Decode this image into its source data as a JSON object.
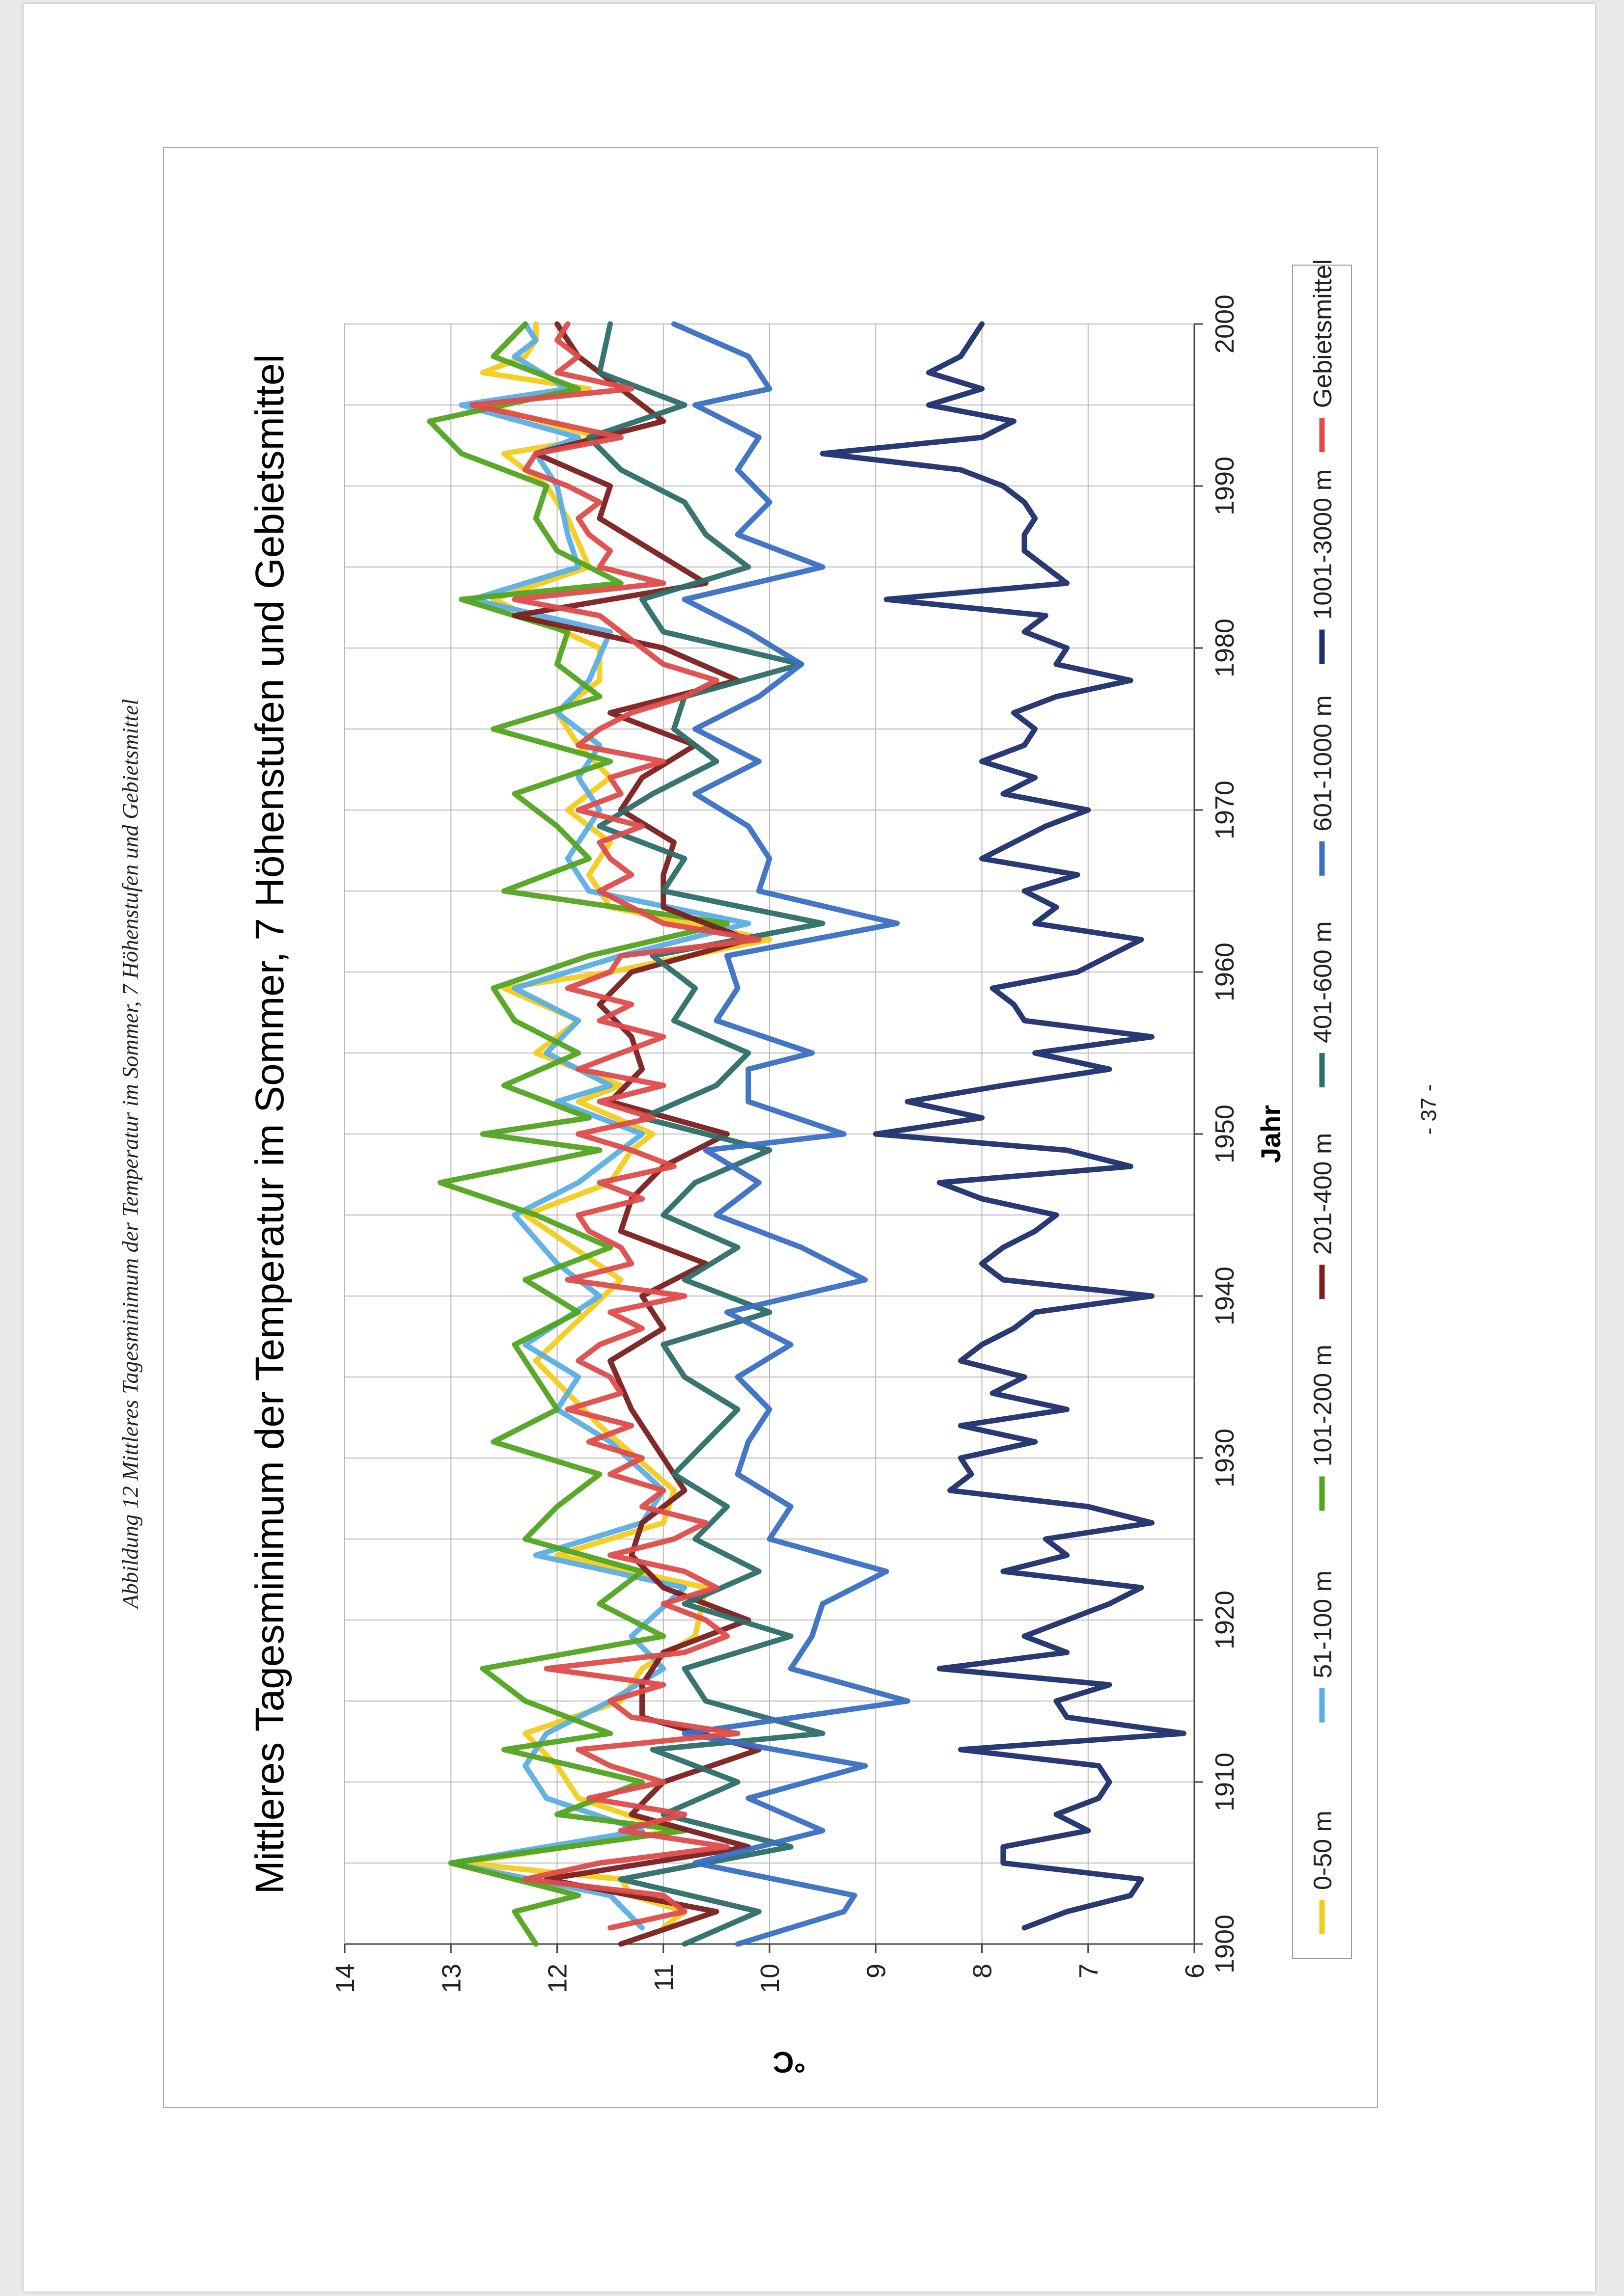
{
  "caption": "Abbildung 12 Mittleres Tagesminimum der Temperatur im Sommer, 7 Höhenstufen und Gebietsmittel",
  "page_number": "- 37 -",
  "chart_data": {
    "type": "line",
    "title": "Mittleres Tagesminimum der Temperatur im Sommer, 7 Höhenstufen und Gebietsmittel",
    "xlabel": "Jahr",
    "ylabel": "°C",
    "xlim": [
      1900,
      2000
    ],
    "ylim": [
      6,
      14
    ],
    "x_ticks": [
      "1900",
      "1910",
      "1920",
      "1930",
      "1940",
      "1950",
      "1960",
      "1970",
      "1980",
      "1990",
      "2000"
    ],
    "y_ticks": [
      "6",
      "7",
      "8",
      "9",
      "10",
      "11",
      "12",
      "13",
      "14"
    ],
    "grid": true,
    "legend_position": "bottom",
    "series": [
      {
        "name": "0-50 m",
        "color": "#f2cc1b",
        "x": [
          1901,
          1902,
          1903,
          1904,
          1905,
          1907,
          1909,
          1911,
          1913,
          1915,
          1917,
          1919,
          1922,
          1924,
          1926,
          1928,
          1932,
          1936,
          1941,
          1945,
          1947,
          1949,
          1950,
          1952,
          1953,
          1955,
          1957,
          1959,
          1960,
          1962,
          1964,
          1966,
          1968,
          1970,
          1972,
          1974,
          1976,
          1978,
          1980,
          1983,
          1985,
          1988,
          1990,
          1992,
          1993,
          1995,
          1996,
          1997,
          1998,
          1999,
          2000
        ],
        "y": [
          11.0,
          10.8,
          11.3,
          11.4,
          12.9,
          10.9,
          11.8,
          12.0,
          12.3,
          11.4,
          11.2,
          10.7,
          10.6,
          12.0,
          11.0,
          10.9,
          11.6,
          12.2,
          11.4,
          12.3,
          11.5,
          11.3,
          11.1,
          11.8,
          11.4,
          12.2,
          11.8,
          12.5,
          11.5,
          10.0,
          11.5,
          11.7,
          11.5,
          11.9,
          11.5,
          11.8,
          12.0,
          11.6,
          11.6,
          12.6,
          11.7,
          11.9,
          12.1,
          12.5,
          11.6,
          12.7,
          11.7,
          12.7,
          12.3,
          12.2,
          12.2
        ]
      },
      {
        "name": "51-100 m",
        "color": "#5aaee4",
        "x": [
          1901,
          1903,
          1905,
          1907,
          1909,
          1911,
          1913,
          1915,
          1917,
          1919,
          1922,
          1924,
          1926,
          1928,
          1931,
          1933,
          1935,
          1937,
          1940,
          1942,
          1945,
          1947,
          1950,
          1952,
          1953,
          1955,
          1957,
          1959,
          1961,
          1963,
          1965,
          1967,
          1970,
          1972,
          1974,
          1976,
          1978,
          1981,
          1983,
          1985,
          1987,
          1990,
          1992,
          1993,
          1995,
          1996,
          1998,
          1999,
          2000
        ],
        "y": [
          11.2,
          11.5,
          13.0,
          11.2,
          12.1,
          12.3,
          12.1,
          11.5,
          11.0,
          11.3,
          10.8,
          12.2,
          11.2,
          11.0,
          11.5,
          12.0,
          11.8,
          12.3,
          11.6,
          12.0,
          12.4,
          11.8,
          11.2,
          12.0,
          11.5,
          12.1,
          11.8,
          12.4,
          11.4,
          10.2,
          11.7,
          11.9,
          11.6,
          11.8,
          11.6,
          12.0,
          11.7,
          11.5,
          12.8,
          11.8,
          11.9,
          12.0,
          12.2,
          11.8,
          12.9,
          11.9,
          12.4,
          12.2,
          12.3
        ]
      },
      {
        "name": "101-200 m",
        "color": "#52a41f",
        "x": [
          1900,
          1902,
          1903,
          1905,
          1907,
          1908,
          1910,
          1912,
          1913,
          1915,
          1917,
          1919,
          1921,
          1923,
          1925,
          1927,
          1929,
          1931,
          1933,
          1935,
          1937,
          1939,
          1941,
          1943,
          1945,
          1947,
          1949,
          1950,
          1951,
          1953,
          1955,
          1957,
          1959,
          1961,
          1963,
          1965,
          1967,
          1969,
          1971,
          1973,
          1975,
          1977,
          1979,
          1981,
          1983,
          1984,
          1986,
          1988,
          1990,
          1992,
          1994,
          1996,
          1998,
          2000
        ],
        "y": [
          12.2,
          12.4,
          11.8,
          13.0,
          10.8,
          12.0,
          11.2,
          12.5,
          11.5,
          12.3,
          12.7,
          11.0,
          11.6,
          11.2,
          12.3,
          12.0,
          11.6,
          12.6,
          12.0,
          12.2,
          12.4,
          11.8,
          12.3,
          11.5,
          12.2,
          13.1,
          11.6,
          12.7,
          11.7,
          12.5,
          11.8,
          12.4,
          12.6,
          11.7,
          10.4,
          12.5,
          11.7,
          12.0,
          12.4,
          11.5,
          12.6,
          11.6,
          12.0,
          11.9,
          12.9,
          11.4,
          12.0,
          12.2,
          12.1,
          12.9,
          13.2,
          11.8,
          12.6,
          12.3
        ]
      },
      {
        "name": "201-400 m",
        "color": "#7b1f1f",
        "x": [
          1900,
          1902,
          1904,
          1906,
          1908,
          1910,
          1912,
          1914,
          1916,
          1918,
          1920,
          1922,
          1924,
          1926,
          1928,
          1930,
          1933,
          1936,
          1938,
          1940,
          1942,
          1944,
          1946,
          1948,
          1950,
          1952,
          1954,
          1956,
          1958,
          1960,
          1962,
          1964,
          1966,
          1968,
          1970,
          1972,
          1974,
          1976,
          1978,
          1980,
          1982,
          1984,
          1986,
          1988,
          1990,
          1992,
          1994,
          1996,
          1998,
          2000
        ],
        "y": [
          11.4,
          10.5,
          12.1,
          10.2,
          11.3,
          11.0,
          10.1,
          11.2,
          11.2,
          11.0,
          10.2,
          11.0,
          11.3,
          11.2,
          10.8,
          11.0,
          11.3,
          11.5,
          11.0,
          11.2,
          10.6,
          11.4,
          11.3,
          11.0,
          10.4,
          11.5,
          11.2,
          11.3,
          11.6,
          11.3,
          10.2,
          11.0,
          11.0,
          10.9,
          11.4,
          11.2,
          10.7,
          11.5,
          10.3,
          11.0,
          12.4,
          10.6,
          11.1,
          11.6,
          11.5,
          12.2,
          11.0,
          11.4,
          11.8,
          12.0
        ]
      },
      {
        "name": "401-600 m",
        "color": "#2e6e68",
        "x": [
          1900,
          1902,
          1904,
          1906,
          1908,
          1910,
          1912,
          1913,
          1915,
          1917,
          1919,
          1921,
          1923,
          1925,
          1927,
          1929,
          1931,
          1933,
          1935,
          1937,
          1939,
          1941,
          1943,
          1945,
          1947,
          1949,
          1951,
          1953,
          1955,
          1957,
          1959,
          1961,
          1963,
          1965,
          1967,
          1969,
          1971,
          1973,
          1975,
          1977,
          1979,
          1981,
          1983,
          1985,
          1987,
          1989,
          1991,
          1993,
          1995,
          1997,
          2000
        ],
        "y": [
          10.8,
          10.1,
          11.4,
          9.8,
          11.0,
          10.3,
          11.1,
          9.5,
          10.6,
          10.8,
          9.8,
          10.8,
          10.1,
          10.7,
          10.4,
          10.9,
          10.6,
          10.3,
          10.8,
          11.0,
          10.0,
          10.8,
          10.3,
          11.0,
          10.7,
          10.0,
          11.2,
          10.5,
          10.2,
          10.9,
          10.7,
          11.1,
          9.5,
          11.0,
          10.8,
          11.6,
          11.1,
          10.5,
          10.9,
          10.8,
          9.7,
          11.0,
          11.2,
          10.2,
          10.6,
          10.8,
          11.4,
          11.7,
          10.8,
          11.6,
          11.5
        ]
      },
      {
        "name": "601-1000 m",
        "color": "#3a6fc5",
        "x": [
          1900,
          1902,
          1903,
          1905,
          1907,
          1909,
          1911,
          1913,
          1915,
          1917,
          1919,
          1921,
          1923,
          1925,
          1927,
          1929,
          1931,
          1933,
          1935,
          1937,
          1939,
          1941,
          1943,
          1945,
          1947,
          1949,
          1950,
          1952,
          1954,
          1955,
          1957,
          1959,
          1961,
          1963,
          1965,
          1967,
          1969,
          1971,
          1973,
          1975,
          1977,
          1979,
          1981,
          1983,
          1985,
          1987,
          1989,
          1991,
          1993,
          1995,
          1996,
          1998,
          2000
        ],
        "y": [
          10.3,
          9.3,
          9.2,
          10.7,
          9.5,
          10.2,
          9.1,
          10.8,
          8.7,
          9.8,
          9.6,
          9.5,
          8.9,
          10.0,
          9.8,
          10.3,
          10.2,
          10.0,
          10.3,
          9.8,
          10.4,
          9.1,
          9.7,
          10.5,
          10.1,
          10.6,
          9.3,
          10.2,
          10.2,
          9.6,
          10.5,
          10.3,
          10.4,
          8.8,
          10.1,
          10.0,
          10.2,
          10.7,
          10.1,
          10.7,
          10.1,
          9.7,
          10.2,
          10.8,
          9.5,
          10.3,
          10.0,
          10.3,
          10.1,
          10.7,
          10.0,
          10.2,
          10.9
        ]
      },
      {
        "name": "1001-3000 m",
        "color": "#1c2e6b",
        "x": [
          1901,
          1902,
          1903,
          1904,
          1905,
          1906,
          1907,
          1908,
          1909,
          1910,
          1911,
          1912,
          1913,
          1914,
          1915,
          1916,
          1917,
          1918,
          1919,
          1920,
          1921,
          1922,
          1923,
          1924,
          1925,
          1926,
          1927,
          1928,
          1929,
          1930,
          1931,
          1932,
          1933,
          1934,
          1935,
          1936,
          1937,
          1938,
          1939,
          1940,
          1941,
          1942,
          1943,
          1944,
          1945,
          1946,
          1947,
          1948,
          1949,
          1950,
          1951,
          1952,
          1953,
          1954,
          1955,
          1956,
          1957,
          1958,
          1959,
          1960,
          1961,
          1962,
          1963,
          1964,
          1965,
          1966,
          1967,
          1968,
          1969,
          1970,
          1971,
          1972,
          1973,
          1974,
          1975,
          1976,
          1977,
          1978,
          1979,
          1980,
          1981,
          1982,
          1983,
          1984,
          1985,
          1986,
          1987,
          1988,
          1989,
          1990,
          1991,
          1992,
          1993,
          1994,
          1995,
          1996,
          1997,
          1998,
          1999,
          2000
        ],
        "y": [
          7.6,
          7.2,
          6.6,
          6.5,
          7.8,
          7.8,
          7.0,
          7.3,
          6.9,
          6.8,
          6.9,
          8.2,
          6.1,
          7.2,
          7.3,
          6.8,
          8.4,
          7.2,
          7.6,
          7.2,
          6.8,
          6.5,
          7.8,
          7.2,
          7.4,
          6.4,
          7.0,
          8.3,
          8.1,
          8.2,
          7.5,
          8.2,
          7.2,
          7.9,
          7.6,
          8.2,
          8.0,
          7.7,
          7.5,
          6.4,
          7.8,
          8.0,
          7.8,
          7.5,
          7.3,
          8.0,
          8.4,
          6.6,
          7.2,
          9.0,
          8.0,
          8.7,
          7.8,
          6.8,
          7.5,
          6.4,
          7.6,
          7.7,
          7.9,
          7.1,
          6.8,
          6.5,
          7.5,
          7.3,
          7.6,
          7.1,
          8.0,
          7.7,
          7.4,
          7.0,
          7.8,
          7.5,
          8.0,
          7.6,
          7.5,
          7.7,
          7.3,
          6.6,
          7.3,
          7.2,
          7.6,
          7.4,
          8.9,
          7.2,
          7.4,
          7.6,
          7.6,
          7.5,
          7.6,
          7.8,
          8.2,
          9.5,
          8.0,
          7.7,
          8.5,
          8.0,
          8.5,
          8.2,
          8.1,
          8.0
        ]
      },
      {
        "name": "Gebietsmittel",
        "color": "#df4b4b",
        "x": [
          1901,
          1902,
          1903,
          1904,
          1905,
          1906,
          1907,
          1908,
          1909,
          1910,
          1911,
          1912,
          1913,
          1914,
          1915,
          1916,
          1917,
          1918,
          1919,
          1920,
          1921,
          1922,
          1923,
          1924,
          1925,
          1926,
          1927,
          1928,
          1929,
          1930,
          1931,
          1932,
          1933,
          1934,
          1935,
          1936,
          1937,
          1938,
          1939,
          1940,
          1941,
          1942,
          1943,
          1944,
          1945,
          1946,
          1947,
          1948,
          1949,
          1950,
          1951,
          1952,
          1953,
          1954,
          1955,
          1956,
          1957,
          1958,
          1959,
          1960,
          1961,
          1962,
          1963,
          1964,
          1965,
          1966,
          1967,
          1968,
          1969,
          1970,
          1971,
          1972,
          1973,
          1974,
          1975,
          1976,
          1977,
          1978,
          1979,
          1980,
          1981,
          1982,
          1983,
          1984,
          1985,
          1986,
          1987,
          1988,
          1989,
          1990,
          1991,
          1992,
          1993,
          1994,
          1995,
          1996,
          1997,
          1998,
          1999,
          2000
        ],
        "y": [
          11.5,
          10.8,
          11.0,
          12.3,
          11.6,
          10.4,
          11.4,
          10.8,
          11.7,
          11.0,
          11.5,
          11.8,
          10.3,
          11.3,
          11.5,
          11.0,
          12.1,
          10.8,
          10.4,
          10.6,
          11.0,
          10.5,
          10.8,
          11.5,
          10.9,
          10.6,
          11.2,
          11.0,
          11.5,
          11.2,
          11.7,
          11.3,
          11.9,
          11.4,
          11.5,
          11.8,
          11.6,
          11.2,
          11.5,
          10.8,
          11.9,
          11.3,
          11.4,
          11.7,
          11.8,
          11.2,
          11.6,
          10.9,
          11.3,
          11.8,
          11.1,
          11.6,
          11.0,
          11.8,
          11.4,
          11.0,
          11.6,
          11.3,
          11.9,
          11.5,
          11.4,
          10.1,
          11.0,
          11.3,
          11.6,
          11.3,
          11.5,
          11.6,
          11.2,
          11.8,
          11.4,
          11.5,
          11.0,
          11.8,
          11.6,
          11.3,
          10.8,
          10.5,
          11.0,
          11.2,
          11.4,
          11.6,
          12.4,
          11.0,
          11.6,
          11.5,
          11.7,
          11.8,
          11.6,
          11.9,
          12.3,
          12.2,
          11.4,
          12.1,
          12.8,
          11.3,
          12.0,
          11.8,
          12.0,
          11.9
        ]
      }
    ]
  }
}
